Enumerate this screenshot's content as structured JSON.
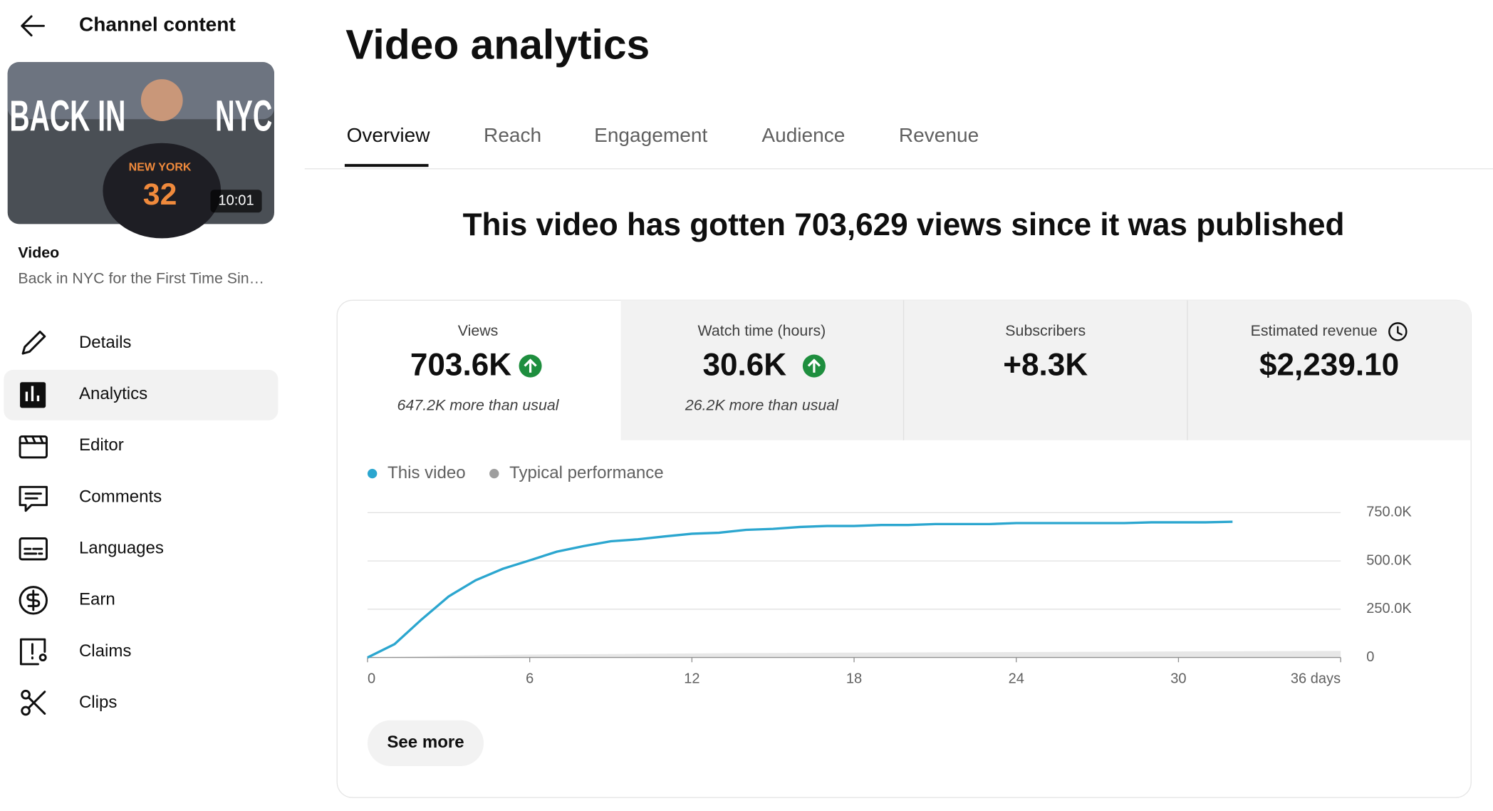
{
  "sidebar": {
    "back_title": "Channel content",
    "thumbnail": {
      "left_text": "BACK IN",
      "right_text": "NYC",
      "jersey_text": "NEW YORK",
      "jersey_number": "32",
      "duration": "10:01"
    },
    "video_label": "Video",
    "video_title": "Back in NYC for the First Time Sin…",
    "nav": [
      "Details",
      "Analytics",
      "Editor",
      "Comments",
      "Languages",
      "Earn",
      "Claims",
      "Clips"
    ]
  },
  "header": {
    "title": "Video analytics",
    "tabs": [
      "Overview",
      "Reach",
      "Engagement",
      "Audience",
      "Revenue"
    ]
  },
  "headline": "This video has gotten 703,629 views since it was published",
  "metrics": [
    {
      "label": "Views",
      "value": "703.6K",
      "note": "647.2K more than usual"
    },
    {
      "label": "Watch time (hours)",
      "value": "30.6K",
      "note": "26.2K more than usual"
    },
    {
      "label": "Subscribers",
      "value": "+8.3K"
    },
    {
      "label": "Estimated revenue",
      "value": "$2,239.10"
    }
  ],
  "chart_data": {
    "type": "line",
    "x": [
      0,
      1,
      2,
      3,
      4,
      5,
      6,
      7,
      8,
      9,
      10,
      11,
      12,
      13,
      14,
      15,
      16,
      17,
      18,
      19,
      20,
      21,
      22,
      23,
      24,
      25,
      26,
      27,
      28,
      29,
      30,
      31,
      32,
      33,
      34,
      35,
      36
    ],
    "series": [
      {
        "name": "This video",
        "color": "#2ba6cf",
        "values": [
          0,
          69000,
          197000,
          316000,
          400000,
          459000,
          503000,
          548000,
          577000,
          602000,
          612000,
          627000,
          641000,
          646000,
          661000,
          666000,
          676000,
          681000,
          681000,
          686000,
          686000,
          691000,
          691000,
          691000,
          696000,
          696000,
          696000,
          696000,
          696000,
          700000,
          700000,
          700000,
          703000,
          null,
          null,
          null,
          null
        ]
      },
      {
        "name": "Typical performance",
        "color": "#9e9e9e",
        "values": [
          0,
          3000,
          6000,
          9000,
          11000,
          13000,
          15000,
          16000,
          17000,
          18000,
          19000,
          20000,
          21000,
          22000,
          23000,
          23500,
          24000,
          24500,
          25000,
          25500,
          26000,
          26500,
          27000,
          27500,
          28000,
          28500,
          29000,
          29500,
          30000,
          30500,
          31000,
          31500,
          32000,
          32500,
          33000,
          33500,
          34000
        ]
      }
    ],
    "xlim": [
      0,
      36
    ],
    "xticks": [
      0,
      6,
      12,
      18,
      24,
      30,
      {
        "value": 36,
        "label": "36 days"
      }
    ],
    "ylim": [
      0,
      750000
    ],
    "yticks": [
      0,
      {
        "value": 250000,
        "label": "250.0K"
      },
      {
        "value": 500000,
        "label": "500.0K"
      },
      {
        "value": 750000,
        "label": "750.0K"
      }
    ],
    "grid": true
  },
  "see_more": "See more"
}
